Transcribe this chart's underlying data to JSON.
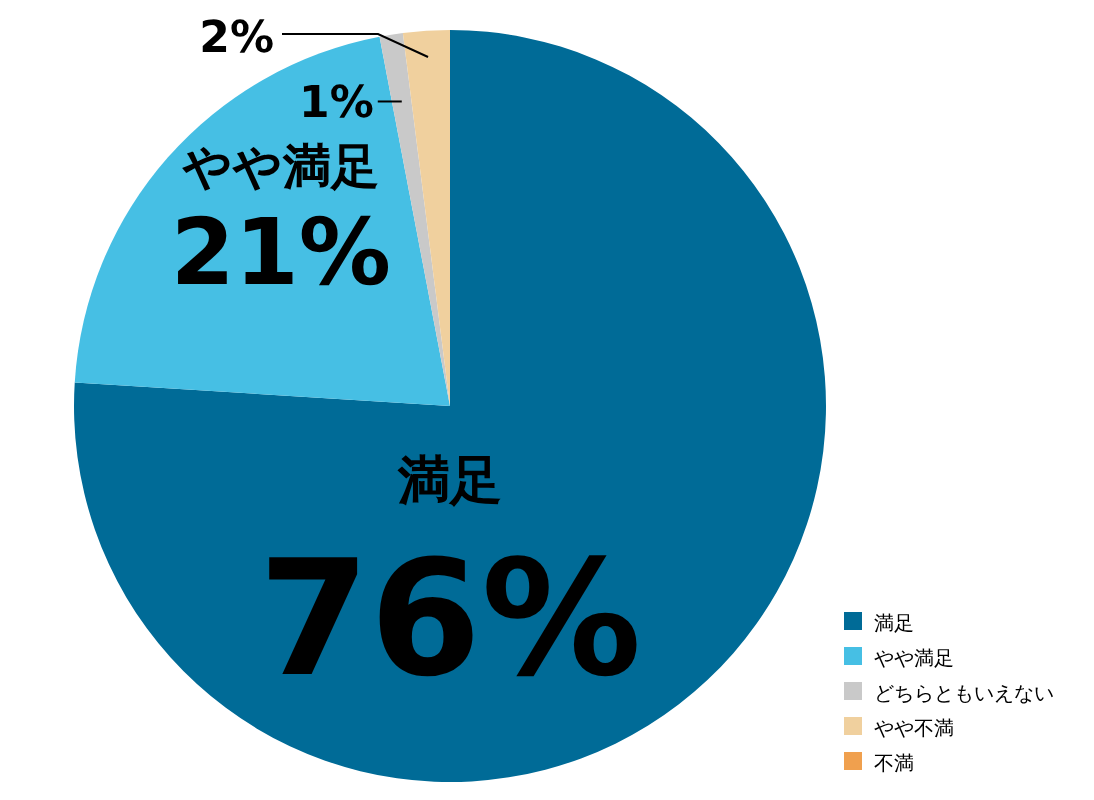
{
  "chart_data": {
    "type": "pie",
    "categories": [
      "満足",
      "やや満足",
      "どちらともいえない",
      "やや不満",
      "不満"
    ],
    "values": [
      76,
      21,
      1,
      2,
      0
    ],
    "colors": [
      "#006b97",
      "#46bfe4",
      "#c9c9c9",
      "#f0d09e",
      "#f0a04e"
    ],
    "value_labels": [
      "76%",
      "21%",
      "1%",
      "2%",
      null
    ],
    "legend": "bottom right"
  }
}
